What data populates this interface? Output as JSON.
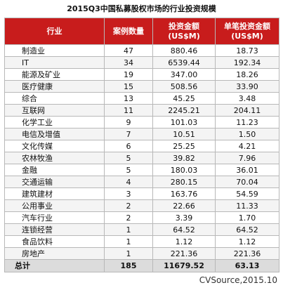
{
  "title": "2015Q3中国私募股权市场的行业投资规模",
  "source": "CVSource,2015.10",
  "columns": [
    "行业",
    "案例数量",
    "投资金额\n(US$M)",
    "单笔投资金额\n(US$M)"
  ],
  "chart_data": {
    "type": "table",
    "title": "2015Q3中国私募股权市场的行业投资规模",
    "columns": [
      "行业",
      "案例数量",
      "投资金额 (US$M)",
      "单笔投资金额 (US$M)"
    ],
    "rows": [
      [
        "制造业",
        "47",
        "880.46",
        "18.73"
      ],
      [
        "IT",
        "34",
        "6539.44",
        "192.34"
      ],
      [
        "能源及矿业",
        "19",
        "347.00",
        "18.26"
      ],
      [
        "医疗健康",
        "15",
        "508.56",
        "33.90"
      ],
      [
        "综合",
        "13",
        "45.25",
        "3.48"
      ],
      [
        "互联网",
        "11",
        "2245.21",
        "204.11"
      ],
      [
        "化学工业",
        "9",
        "101.03",
        "11.23"
      ],
      [
        "电信及增值",
        "7",
        "10.51",
        "1.50"
      ],
      [
        "文化传媒",
        "6",
        "25.25",
        "4.21"
      ],
      [
        "农林牧渔",
        "5",
        "39.82",
        "7.96"
      ],
      [
        "金融",
        "5",
        "180.03",
        "36.01"
      ],
      [
        "交通运输",
        "4",
        "280.15",
        "70.04"
      ],
      [
        "建筑建材",
        "3",
        "163.76",
        "54.59"
      ],
      [
        "公用事业",
        "2",
        "22.66",
        "11.33"
      ],
      [
        "汽车行业",
        "2",
        "3.39",
        "1.70"
      ],
      [
        "连锁经营",
        "1",
        "64.52",
        "64.52"
      ],
      [
        "食品饮料",
        "1",
        "1.12",
        "1.12"
      ],
      [
        "房地产",
        "1",
        "221.36",
        "221.36"
      ]
    ],
    "total": [
      "总计",
      "185",
      "11679.52",
      "63.13"
    ]
  },
  "colors": {
    "header_bg": "#c81c1c",
    "header_text": "#ffffff",
    "grid": "#b8b8b8",
    "total_bg": "#dcdcdc"
  }
}
